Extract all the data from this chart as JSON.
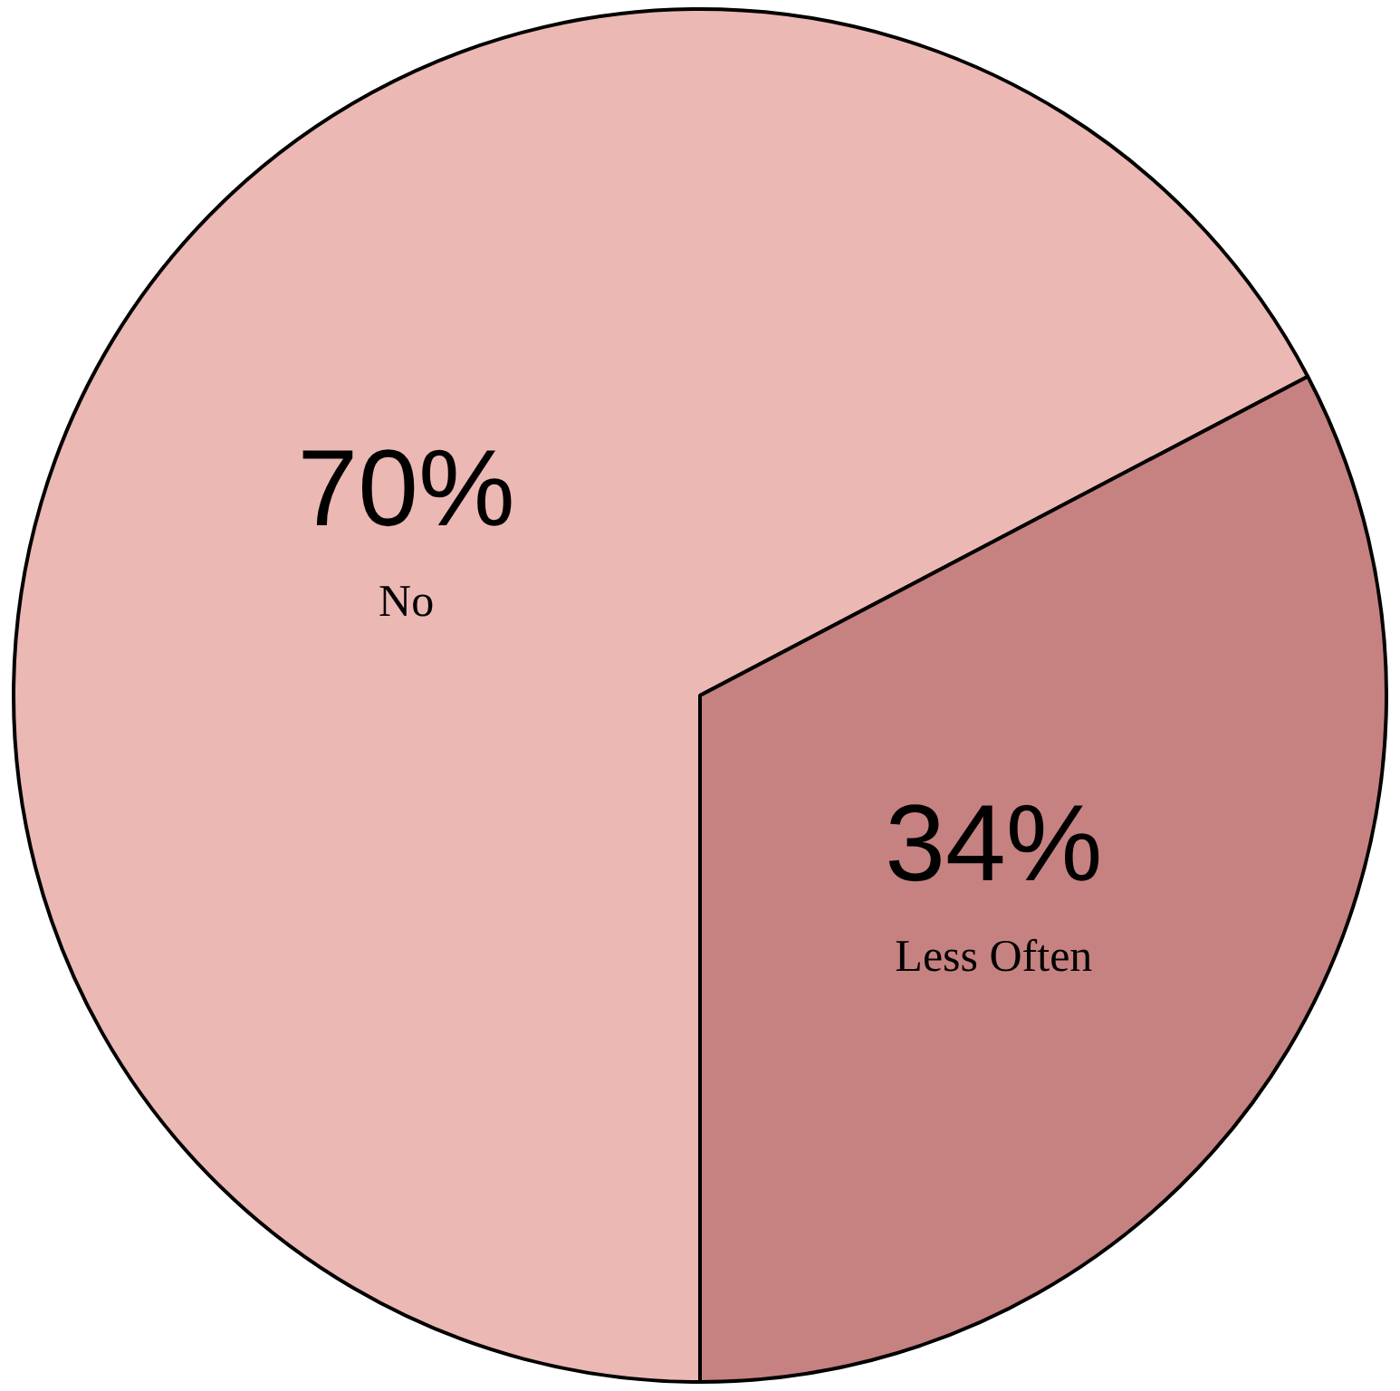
{
  "chart_data": {
    "type": "pie",
    "categories": [
      "No",
      "Less Often"
    ],
    "values": [
      70,
      34
    ],
    "colors": [
      "#ebb8b3",
      "#c68280"
    ],
    "value_labels": [
      "70%",
      "34%"
    ]
  }
}
